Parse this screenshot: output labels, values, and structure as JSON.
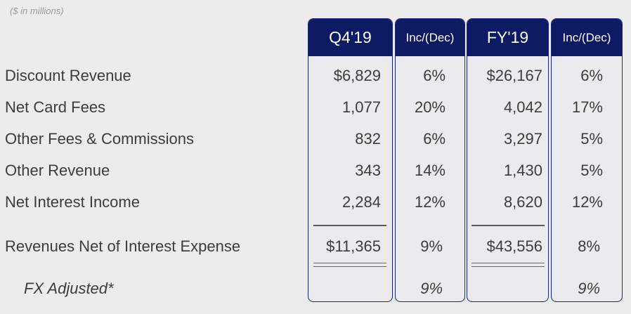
{
  "units_note": "($ in millions)",
  "headers": [
    "Q4'19",
    "Inc/(Dec)",
    "FY'19",
    "Inc/(Dec)"
  ],
  "rows": [
    {
      "label": "Discount Revenue",
      "q4": "$6,829",
      "q4_chg": "6%",
      "fy": "$26,167",
      "fy_chg": "6%"
    },
    {
      "label": "Net Card Fees",
      "q4": "1,077",
      "q4_chg": "20%",
      "fy": "4,042",
      "fy_chg": "17%"
    },
    {
      "label": "Other Fees & Commissions",
      "q4": "832",
      "q4_chg": "6%",
      "fy": "3,297",
      "fy_chg": "5%"
    },
    {
      "label": "Other Revenue",
      "q4": "343",
      "q4_chg": "14%",
      "fy": "1,430",
      "fy_chg": "5%"
    },
    {
      "label": "Net Interest Income",
      "q4": "2,284",
      "q4_chg": "12%",
      "fy": "8,620",
      "fy_chg": "12%"
    }
  ],
  "total": {
    "label": "Revenues Net of Interest Expense",
    "q4": "$11,365",
    "q4_chg": "9%",
    "fy": "$43,556",
    "fy_chg": "8%"
  },
  "fx": {
    "label": "FX Adjusted*",
    "q4_chg": "9%",
    "fy_chg": "9%"
  }
}
